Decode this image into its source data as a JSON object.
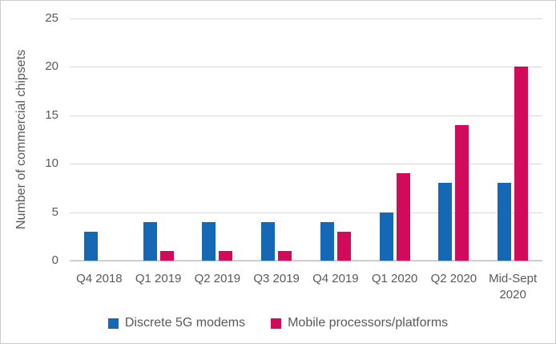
{
  "figure": {
    "background": "#ffffff",
    "border_color": "#cccccc",
    "text_color": "#595959"
  },
  "chart_data": {
    "type": "bar",
    "title": "",
    "subtitle": "",
    "xlabel": "",
    "ylabel": "Number of commercial chipsets",
    "categories": [
      "Q4 2018",
      "Q1 2019",
      "Q2 2019",
      "Q3 2019",
      "Q4 2019",
      "Q1 2020",
      "Q2 2020",
      "Mid-Sept 2020"
    ],
    "series": [
      {
        "name": "Discrete 5G modems",
        "color": "#1568b3",
        "values": [
          3,
          4,
          4,
          4,
          4,
          5,
          8,
          8
        ]
      },
      {
        "name": "Mobile processors/platforms",
        "color": "#d20a5a",
        "values": [
          0,
          1,
          1,
          1,
          3,
          9,
          14,
          20
        ]
      }
    ],
    "ylim": [
      0,
      25
    ],
    "yticks": [
      0,
      5,
      10,
      15,
      20,
      25
    ],
    "grid": true,
    "gridline_color": "#d9d9d9",
    "axis_line_color": "#c3c3c3",
    "legend_position": "bottom"
  }
}
